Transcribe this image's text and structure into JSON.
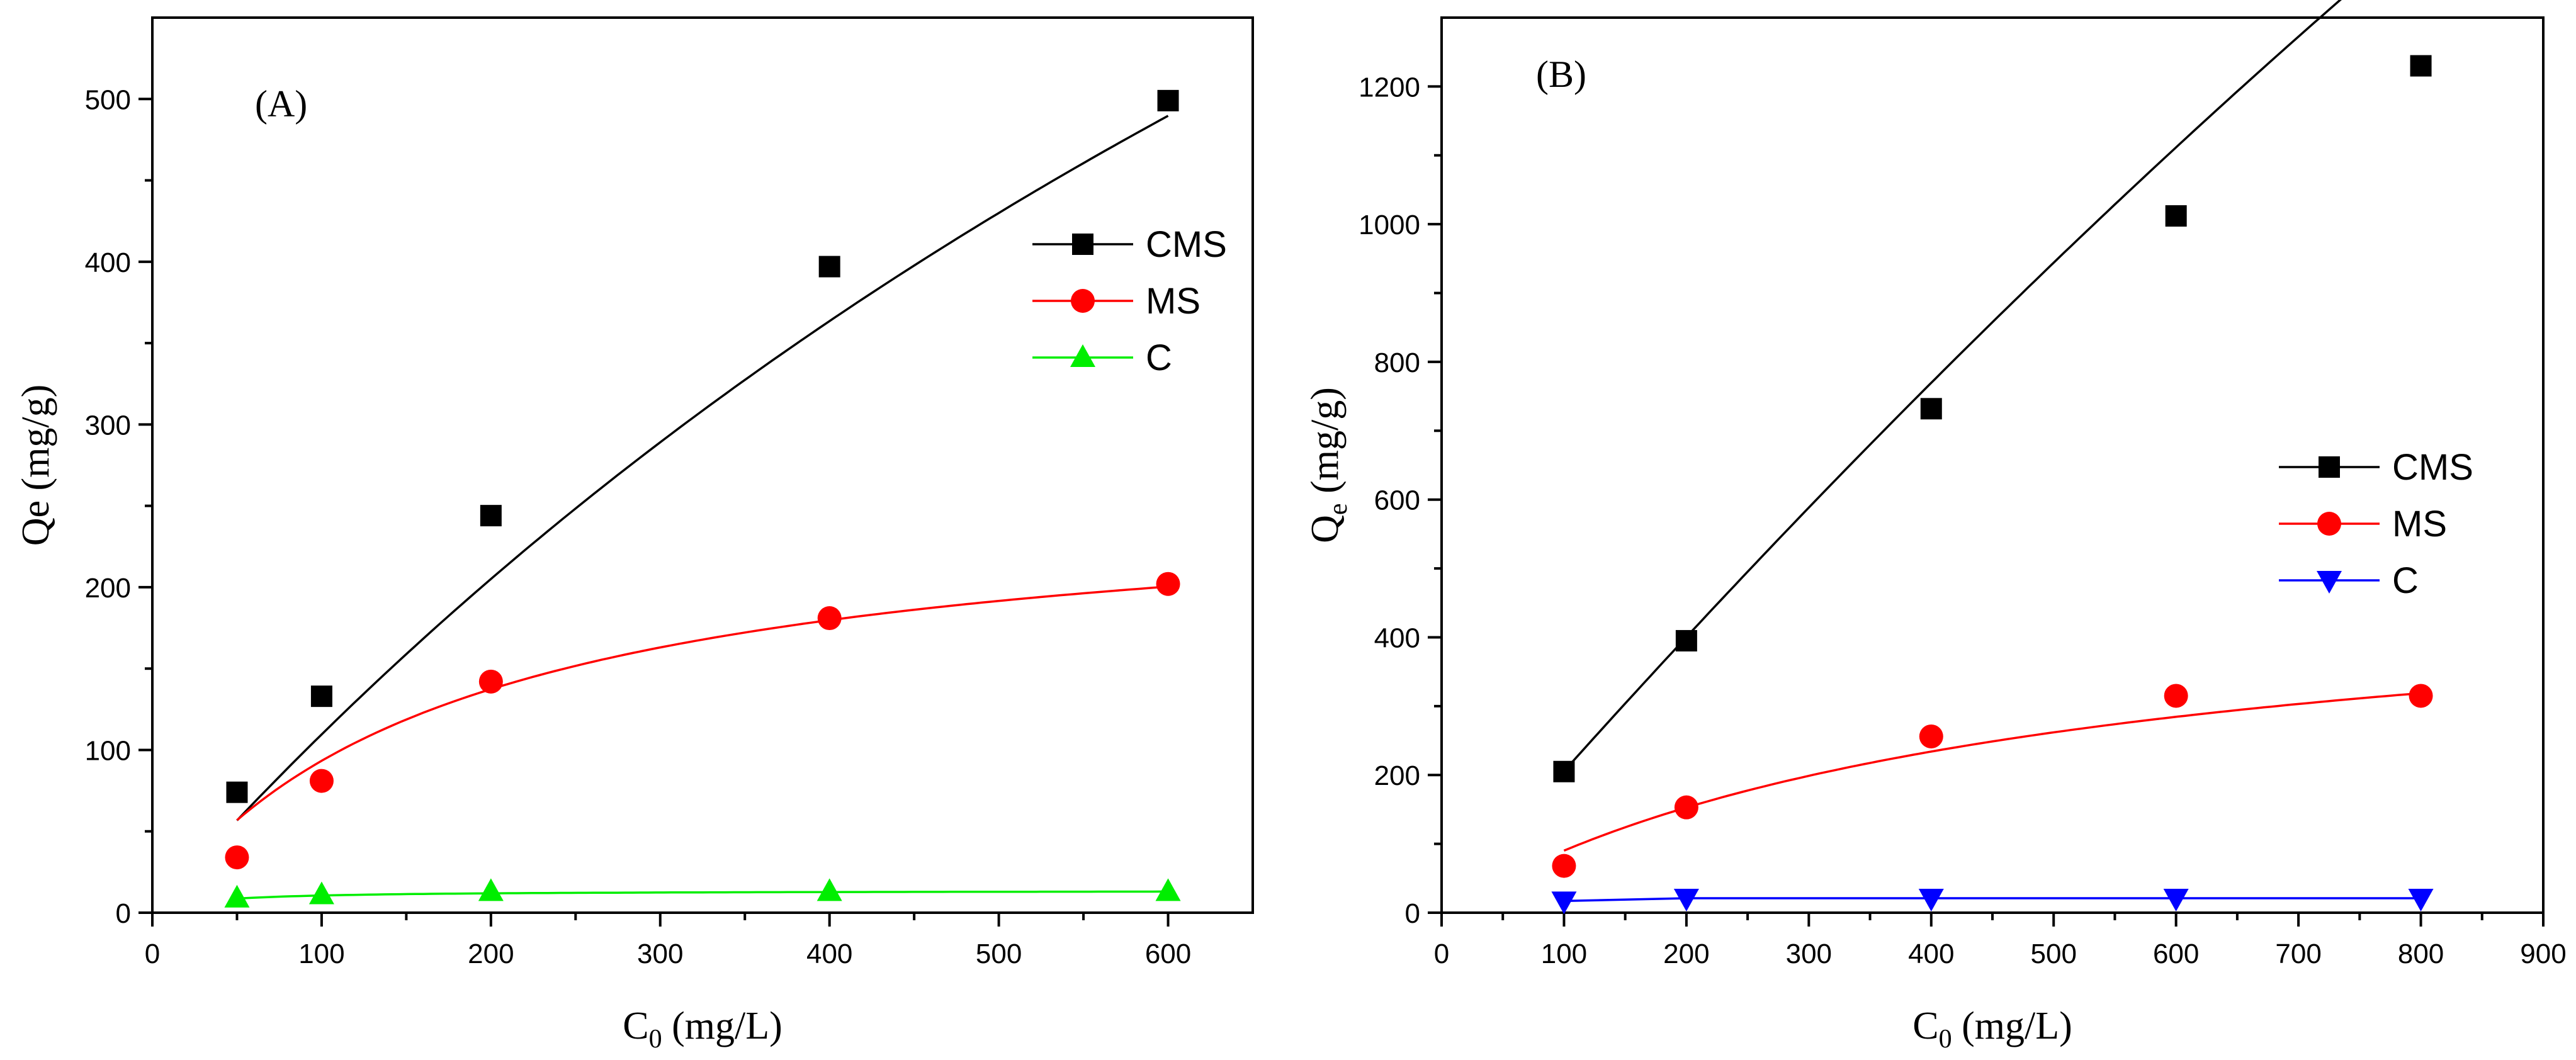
{
  "chart_data": [
    {
      "type": "scatter",
      "panel_label": "(A)",
      "xlabel": "C0 (mg/L)",
      "xlabel_main": "C",
      "xlabel_sub": "0",
      "xlabel_rest": " (mg/L)",
      "ylabel": "Qe (mg/g)",
      "xlim": [
        0,
        650
      ],
      "ylim": [
        0,
        550
      ],
      "x_ticks": [
        0,
        100,
        200,
        300,
        400,
        500,
        600
      ],
      "y_ticks": [
        0,
        100,
        200,
        300,
        400,
        500
      ],
      "legend_position": "top-right",
      "series": [
        {
          "name": "CMS",
          "color": "#000000",
          "marker": "square",
          "x": [
            50,
            100,
            200,
            400,
            600
          ],
          "y": [
            74,
            133,
            244,
            397,
            499
          ],
          "fit": {
            "type": "langmuir",
            "qmax": 1600,
            "K": 0.000735
          }
        },
        {
          "name": "MS",
          "color": "#ff0000",
          "marker": "circle",
          "x": [
            50,
            100,
            200,
            400,
            600
          ],
          "y": [
            34,
            81,
            142,
            181,
            202
          ],
          "fit": {
            "type": "langmuir",
            "qmax": 260,
            "K": 0.0056
          }
        },
        {
          "name": "C",
          "color": "#00ee00",
          "marker": "triangle-up",
          "x": [
            50,
            100,
            200,
            400,
            600
          ],
          "y": [
            9,
            11,
            13,
            13,
            13
          ],
          "fit": {
            "type": "langmuir",
            "qmax": 13.6,
            "K": 0.035
          }
        }
      ]
    },
    {
      "type": "scatter",
      "panel_label": "(B)",
      "xlabel": "C0 (mg/L)",
      "xlabel_main": "C",
      "xlabel_sub": "0",
      "xlabel_rest": " (mg/L)",
      "ylabel": "Qe (mg/g)",
      "ylabel_main": "Q",
      "ylabel_sub": "e",
      "ylabel_rest": " (mg/g)",
      "xlim": [
        0,
        900
      ],
      "ylim": [
        0,
        1300
      ],
      "x_ticks": [
        0,
        100,
        200,
        300,
        400,
        500,
        600,
        700,
        800,
        900
      ],
      "y_ticks": [
        0,
        200,
        400,
        600,
        800,
        1000,
        1200
      ],
      "legend_position": "center-right",
      "series": [
        {
          "name": "CMS",
          "color": "#000000",
          "marker": "square",
          "x": [
            100,
            200,
            400,
            600,
            800
          ],
          "y": [
            205,
            395,
            732,
            1012,
            1230
          ],
          "fit": {
            "type": "poly2",
            "a": -0.00034,
            "b": 2.05,
            "c": 4
          }
        },
        {
          "name": "MS",
          "color": "#ff0000",
          "marker": "circle",
          "x": [
            100,
            200,
            400,
            600,
            800
          ],
          "y": [
            68,
            153,
            256,
            315,
            315
          ],
          "fit": {
            "type": "langmuir",
            "qmax": 500,
            "K": 0.0022
          }
        },
        {
          "name": "C",
          "color": "#0000ff",
          "marker": "triangle-down",
          "x": [
            100,
            200,
            400,
            600,
            800
          ],
          "y": [
            17,
            21,
            21,
            21,
            21
          ],
          "fit": {
            "type": "linear"
          }
        }
      ]
    }
  ]
}
